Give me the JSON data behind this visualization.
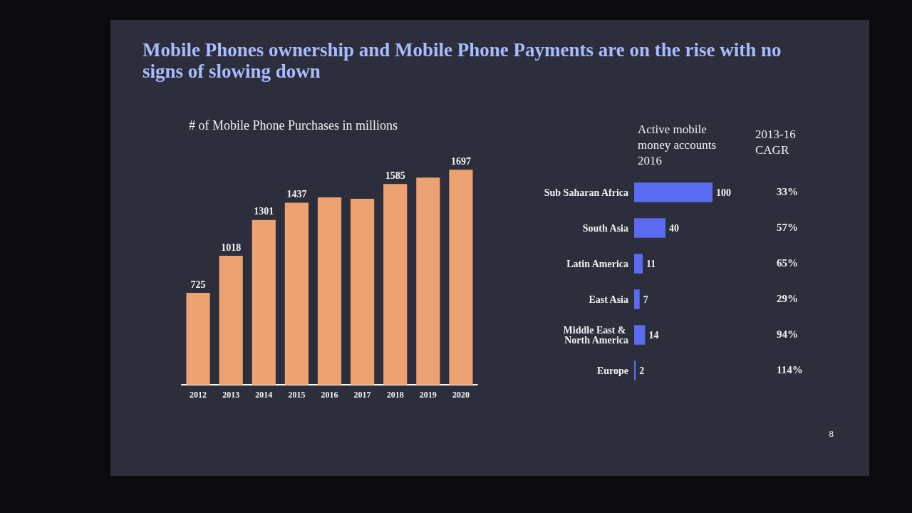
{
  "chart_data": [
    {
      "type": "bar",
      "title": "Mobile Phones ownership and Mobile Phone Payments are on the rise with no signs of slowing down",
      "subtitle": "# of Mobile Phone Purchases in millions",
      "categories": [
        "2012",
        "2013",
        "2014",
        "2015",
        "2016",
        "2017",
        "2018",
        "2019",
        "2020"
      ],
      "values": [
        725,
        1018,
        1301,
        1437,
        1480,
        1468,
        1585,
        1636,
        1697
      ],
      "value_labels": [
        "725",
        "1018",
        "1301",
        "1437",
        null,
        null,
        "1585",
        null,
        "1697"
      ],
      "color": "#eda271",
      "tick_labels": "x"
    },
    {
      "type": "bar",
      "orientation": "horizontal",
      "title": "Active mobile money accounts 2016",
      "categories": [
        "Sub Saharan Africa",
        "South Asia",
        "Latin America",
        "East Asia",
        "Middle East & North America",
        "Europe"
      ],
      "values": [
        100,
        40,
        11,
        7,
        14,
        2
      ],
      "color": "#5b6cf2",
      "data_labels": true,
      "tick_labels": "y",
      "annotations": [
        "2013-16 CAGR",
        "33%",
        "57%",
        "65%",
        "29%",
        "94%",
        "114%",
        "8"
      ]
    }
  ]
}
